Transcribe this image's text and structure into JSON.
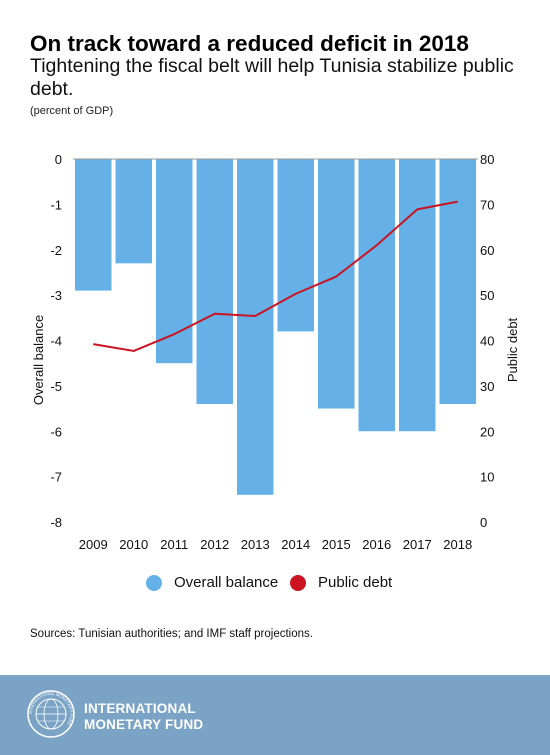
{
  "header": {
    "title": "On track toward a reduced deficit in 2018",
    "subtitle": "Tightening the fiscal belt will help Tunisia stabilize public debt.",
    "unit_note": "(percent of GDP)"
  },
  "legend": {
    "balance_label": "Overall balance",
    "debt_label": "Public debt"
  },
  "source": "Sources: Tunisian authorities; and IMF staff projections.",
  "footer": {
    "org_line1": "INTERNATIONAL",
    "org_line2": "MONETARY FUND",
    "seal_text": "INTERNATIONAL MONETARY FUND"
  },
  "colors": {
    "bar": "#65b1e7",
    "line": "#cc1321",
    "footer_bg": "#7ba3c6"
  },
  "chart_data": {
    "type": "bar+line",
    "categories": [
      "2009",
      "2010",
      "2011",
      "2012",
      "2013",
      "2014",
      "2015",
      "2016",
      "2017",
      "2018"
    ],
    "series": [
      {
        "name": "Overall balance",
        "type": "bar",
        "axis": "left",
        "values": [
          -2.9,
          -2.3,
          -4.5,
          -5.4,
          -7.4,
          -3.8,
          -5.5,
          -6.0,
          -6.0,
          -5.4
        ]
      },
      {
        "name": "Public debt",
        "type": "line",
        "axis": "right",
        "values": [
          39.2,
          37.7,
          41.4,
          45.9,
          45.4,
          50.3,
          54.1,
          61.0,
          68.9,
          70.6
        ]
      }
    ],
    "left_axis": {
      "label": "Overall balance",
      "range": [
        -8,
        0
      ],
      "ticks": [
        "0",
        "-1",
        "-2",
        "-3",
        "-4",
        "-5",
        "-6",
        "-7",
        "-8"
      ]
    },
    "right_axis": {
      "label": "Public debt",
      "range": [
        0,
        80
      ],
      "ticks": [
        "80",
        "70",
        "60",
        "50",
        "40",
        "30",
        "20",
        "10",
        "0"
      ]
    },
    "grid": false,
    "legend_position": "bottom"
  }
}
